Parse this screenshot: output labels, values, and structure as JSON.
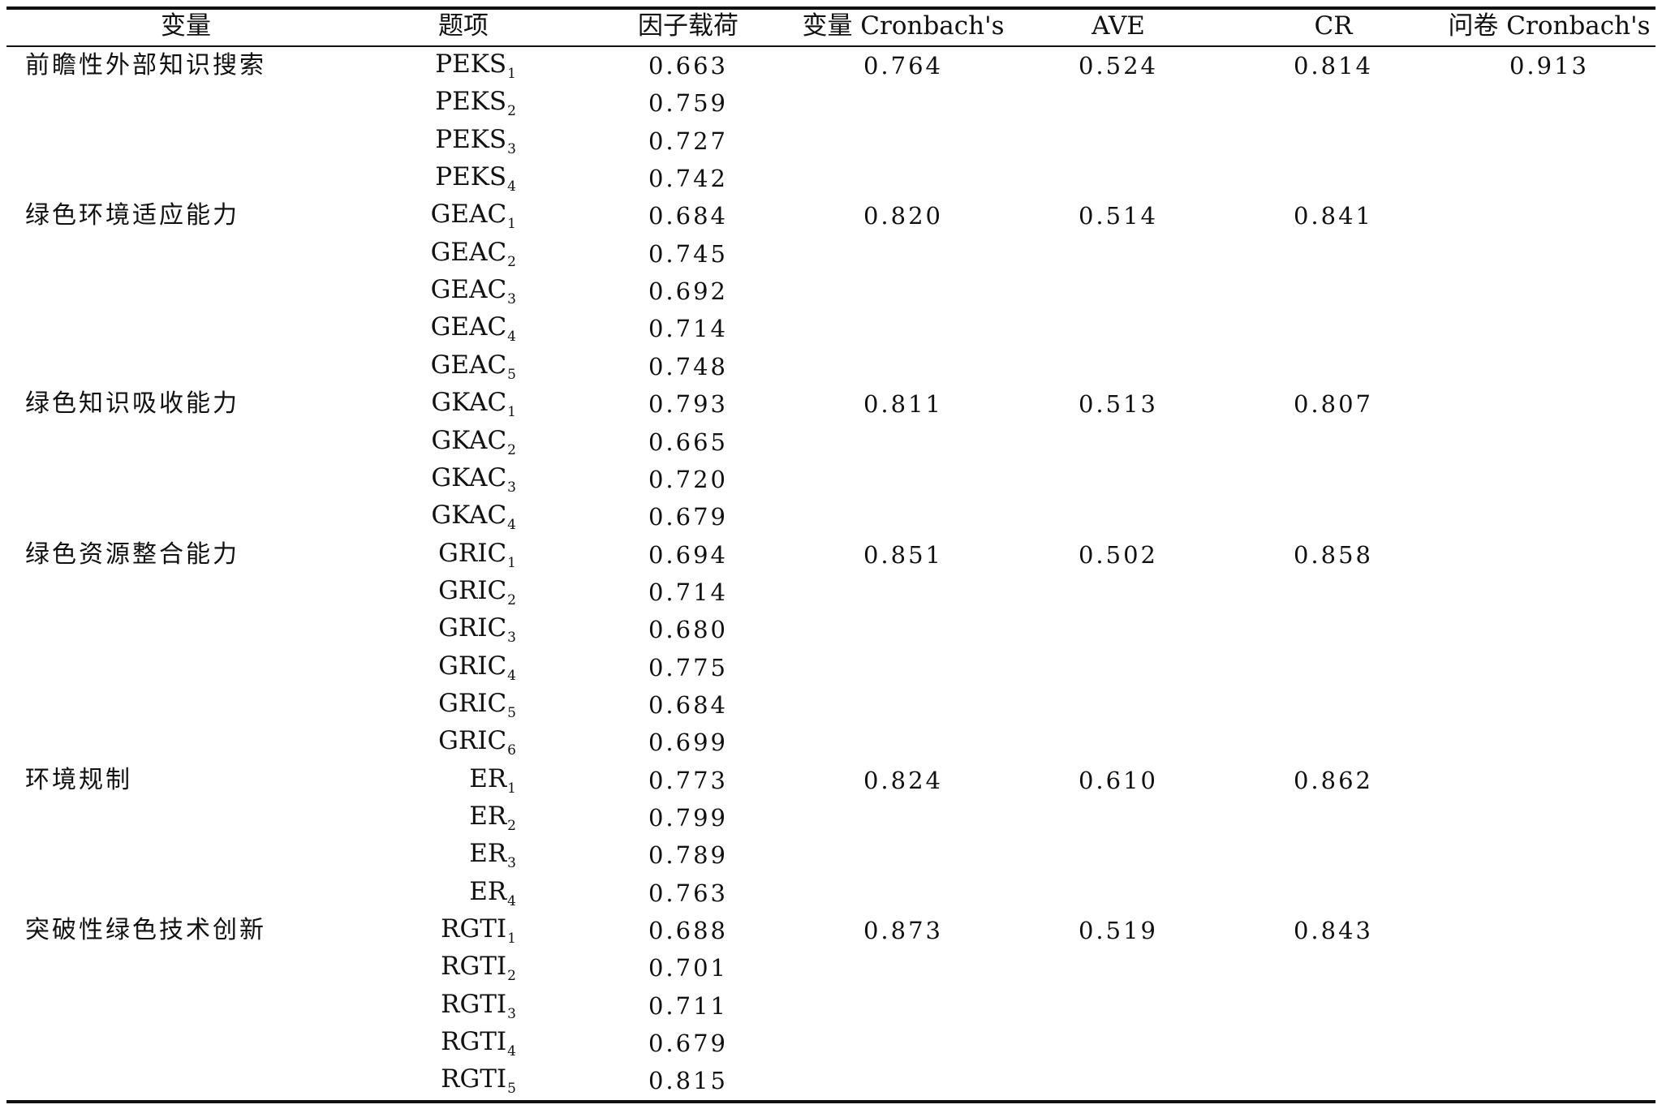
{
  "headers": {
    "variable": "变量",
    "item": "题项",
    "loading": "因子载荷",
    "cronbach": "变量 Cronbach's",
    "ave": "AVE",
    "cr": "CR",
    "questionnaire_cronbach": "问卷 Cronbach's"
  },
  "questionnaire_cronbach": "0.913",
  "groups": [
    {
      "name": "前瞻性外部知识搜索",
      "cronbach": "0.764",
      "ave": "0.524",
      "cr": "0.814",
      "items": [
        {
          "code": "PEKS",
          "sub": "1",
          "loading": "0.663"
        },
        {
          "code": "PEKS",
          "sub": "2",
          "loading": "0.759"
        },
        {
          "code": "PEKS",
          "sub": "3",
          "loading": "0.727"
        },
        {
          "code": "PEKS",
          "sub": "4",
          "loading": "0.742"
        }
      ]
    },
    {
      "name": "绿色环境适应能力",
      "cronbach": "0.820",
      "ave": "0.514",
      "cr": "0.841",
      "items": [
        {
          "code": "GEAC",
          "sub": "1",
          "loading": "0.684"
        },
        {
          "code": "GEAC",
          "sub": "2",
          "loading": "0.745"
        },
        {
          "code": "GEAC",
          "sub": "3",
          "loading": "0.692"
        },
        {
          "code": "GEAC",
          "sub": "4",
          "loading": "0.714"
        },
        {
          "code": "GEAC",
          "sub": "5",
          "loading": "0.748"
        }
      ]
    },
    {
      "name": "绿色知识吸收能力",
      "cronbach": "0.811",
      "ave": "0.513",
      "cr": "0.807",
      "items": [
        {
          "code": "GKAC",
          "sub": "1",
          "loading": "0.793"
        },
        {
          "code": "GKAC",
          "sub": "2",
          "loading": "0.665"
        },
        {
          "code": "GKAC",
          "sub": "3",
          "loading": "0.720"
        },
        {
          "code": "GKAC",
          "sub": "4",
          "loading": "0.679"
        }
      ]
    },
    {
      "name": "绿色资源整合能力",
      "cronbach": "0.851",
      "ave": "0.502",
      "cr": "0.858",
      "items": [
        {
          "code": "GRIC",
          "sub": "1",
          "loading": "0.694"
        },
        {
          "code": "GRIC",
          "sub": "2",
          "loading": "0.714"
        },
        {
          "code": "GRIC",
          "sub": "3",
          "loading": "0.680"
        },
        {
          "code": "GRIC",
          "sub": "4",
          "loading": "0.775"
        },
        {
          "code": "GRIC",
          "sub": "5",
          "loading": "0.684"
        },
        {
          "code": "GRIC",
          "sub": "6",
          "loading": "0.699"
        }
      ]
    },
    {
      "name": "环境规制",
      "cronbach": "0.824",
      "ave": "0.610",
      "cr": "0.862",
      "items": [
        {
          "code": "ER",
          "sub": "1",
          "loading": "0.773"
        },
        {
          "code": "ER",
          "sub": "2",
          "loading": "0.799"
        },
        {
          "code": "ER",
          "sub": "3",
          "loading": "0.789"
        },
        {
          "code": "ER",
          "sub": "4",
          "loading": "0.763"
        }
      ]
    },
    {
      "name": "突破性绿色技术创新",
      "cronbach": "0.873",
      "ave": "0.519",
      "cr": "0.843",
      "items": [
        {
          "code": "RGTI",
          "sub": "1",
          "loading": "0.688"
        },
        {
          "code": "RGTI",
          "sub": "2",
          "loading": "0.701"
        },
        {
          "code": "RGTI",
          "sub": "3",
          "loading": "0.711"
        },
        {
          "code": "RGTI",
          "sub": "4",
          "loading": "0.679"
        },
        {
          "code": "RGTI",
          "sub": "5",
          "loading": "0.815"
        }
      ]
    }
  ]
}
